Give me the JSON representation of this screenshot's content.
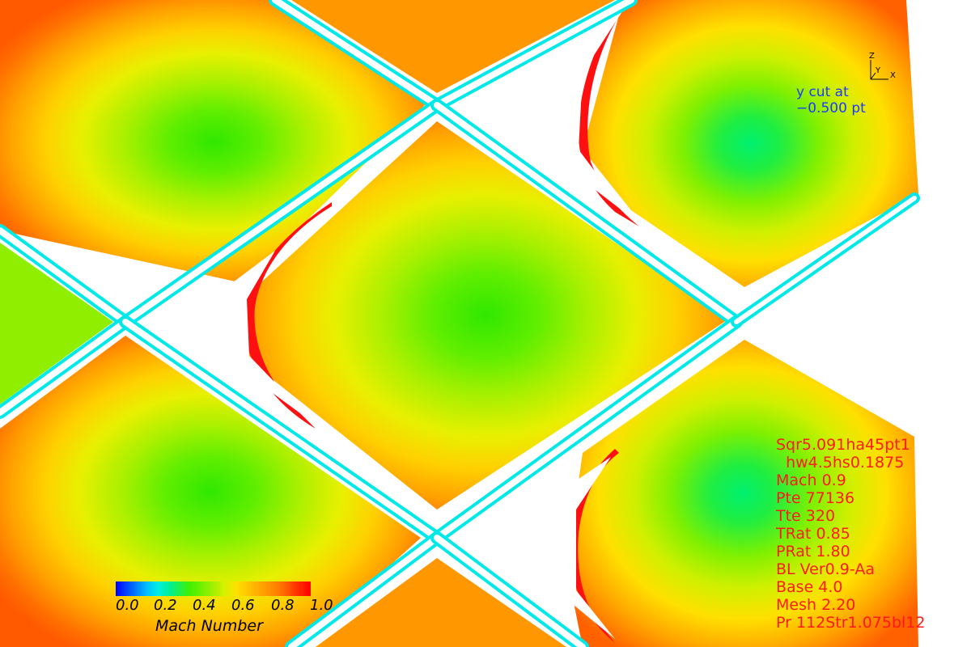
{
  "cut_label": [
    "y cut at",
    "−0.500 pt"
  ],
  "axis_triad": {
    "z": "Z",
    "y": "Y",
    "x": "X"
  },
  "params": [
    "Sqr5.091ha45pt1",
    "  hw4.5hs0.1875",
    "Mach 0.9",
    "Pte 77136",
    "Tte 320",
    "TRat 0.85",
    "PRat 1.80",
    "BL Ver0.9-Aa",
    "Base 4.0",
    "Mesh 2.20",
    "Pr 112Str1.075bl12"
  ],
  "colorbar": {
    "title": "Mach Number",
    "ticks": [
      "0.0",
      "0.2",
      "0.4",
      "0.6",
      "0.8",
      "1.0"
    ],
    "range": [
      0.0,
      1.0
    ]
  },
  "chart_data": {
    "type": "heatmap",
    "title": "",
    "xlabel": "",
    "ylabel": "",
    "colorbar_label": "Mach Number",
    "value_range": [
      0.0,
      1.0
    ],
    "slice": "y cut at −0.500 pt",
    "colors": {
      "low": "#0000ff",
      "mid": "#40f000",
      "high": "#ff0000",
      "channel": "#ffffff",
      "cut_text": "#1a3cff",
      "param_text": "#ff1a1a"
    }
  }
}
